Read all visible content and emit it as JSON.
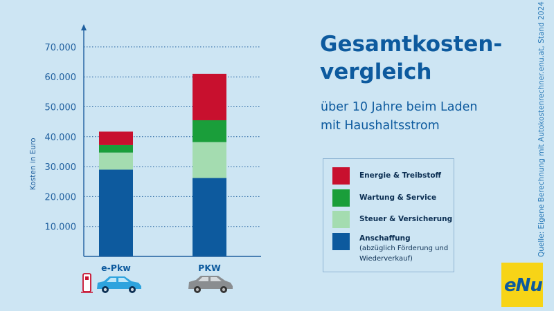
{
  "title_lines": [
    "Gesamtkosten-",
    "vergleich"
  ],
  "subtitle_lines": [
    "über 10 Jahre beim Laden",
    "mit Haushaltsstrom"
  ],
  "source_text": "Quelle: Eigene Berechnung mit Autokostenrechner.enu.at, Stand 2024",
  "logo_text": "eNu",
  "legend": [
    {
      "label": "Energie & Treibstoff",
      "color": "#c8102e"
    },
    {
      "label": "Wartung & Service",
      "color": "#1a9e3a"
    },
    {
      "label": "Steuer & Versicherung",
      "color": "#a4dcb0"
    },
    {
      "label": "Anschaffung",
      "sublabel": "(abzüglich Förderung und Wiederverkauf)",
      "color": "#0d5a9e"
    }
  ],
  "vehicle_icons": [
    "charging-station-icon",
    "electric-car-icon",
    "car-icon"
  ],
  "chart_data": {
    "type": "bar",
    "stacked": true,
    "categories": [
      "e-Pkw",
      "PKW"
    ],
    "ylabel": "Kosten in Euro",
    "ylim": [
      0,
      75000
    ],
    "yticks": [
      10000,
      20000,
      30000,
      40000,
      50000,
      60000,
      70000
    ],
    "ytick_labels": [
      "10.000",
      "20.000",
      "30.000",
      "40.000",
      "50.000",
      "60.000",
      "70.000"
    ],
    "grid": "dotted horizontal",
    "series": [
      {
        "name": "Anschaffung",
        "values": [
          29000,
          26200
        ],
        "color": "#0d5a9e"
      },
      {
        "name": "Steuer & Versicherung",
        "values": [
          5700,
          12000
        ],
        "color": "#a4dcb0"
      },
      {
        "name": "Wartung & Service",
        "values": [
          2500,
          7300
        ],
        "color": "#1a9e3a"
      },
      {
        "name": "Energie & Treibstoff",
        "values": [
          4500,
          15500
        ],
        "color": "#c8102e"
      }
    ]
  }
}
